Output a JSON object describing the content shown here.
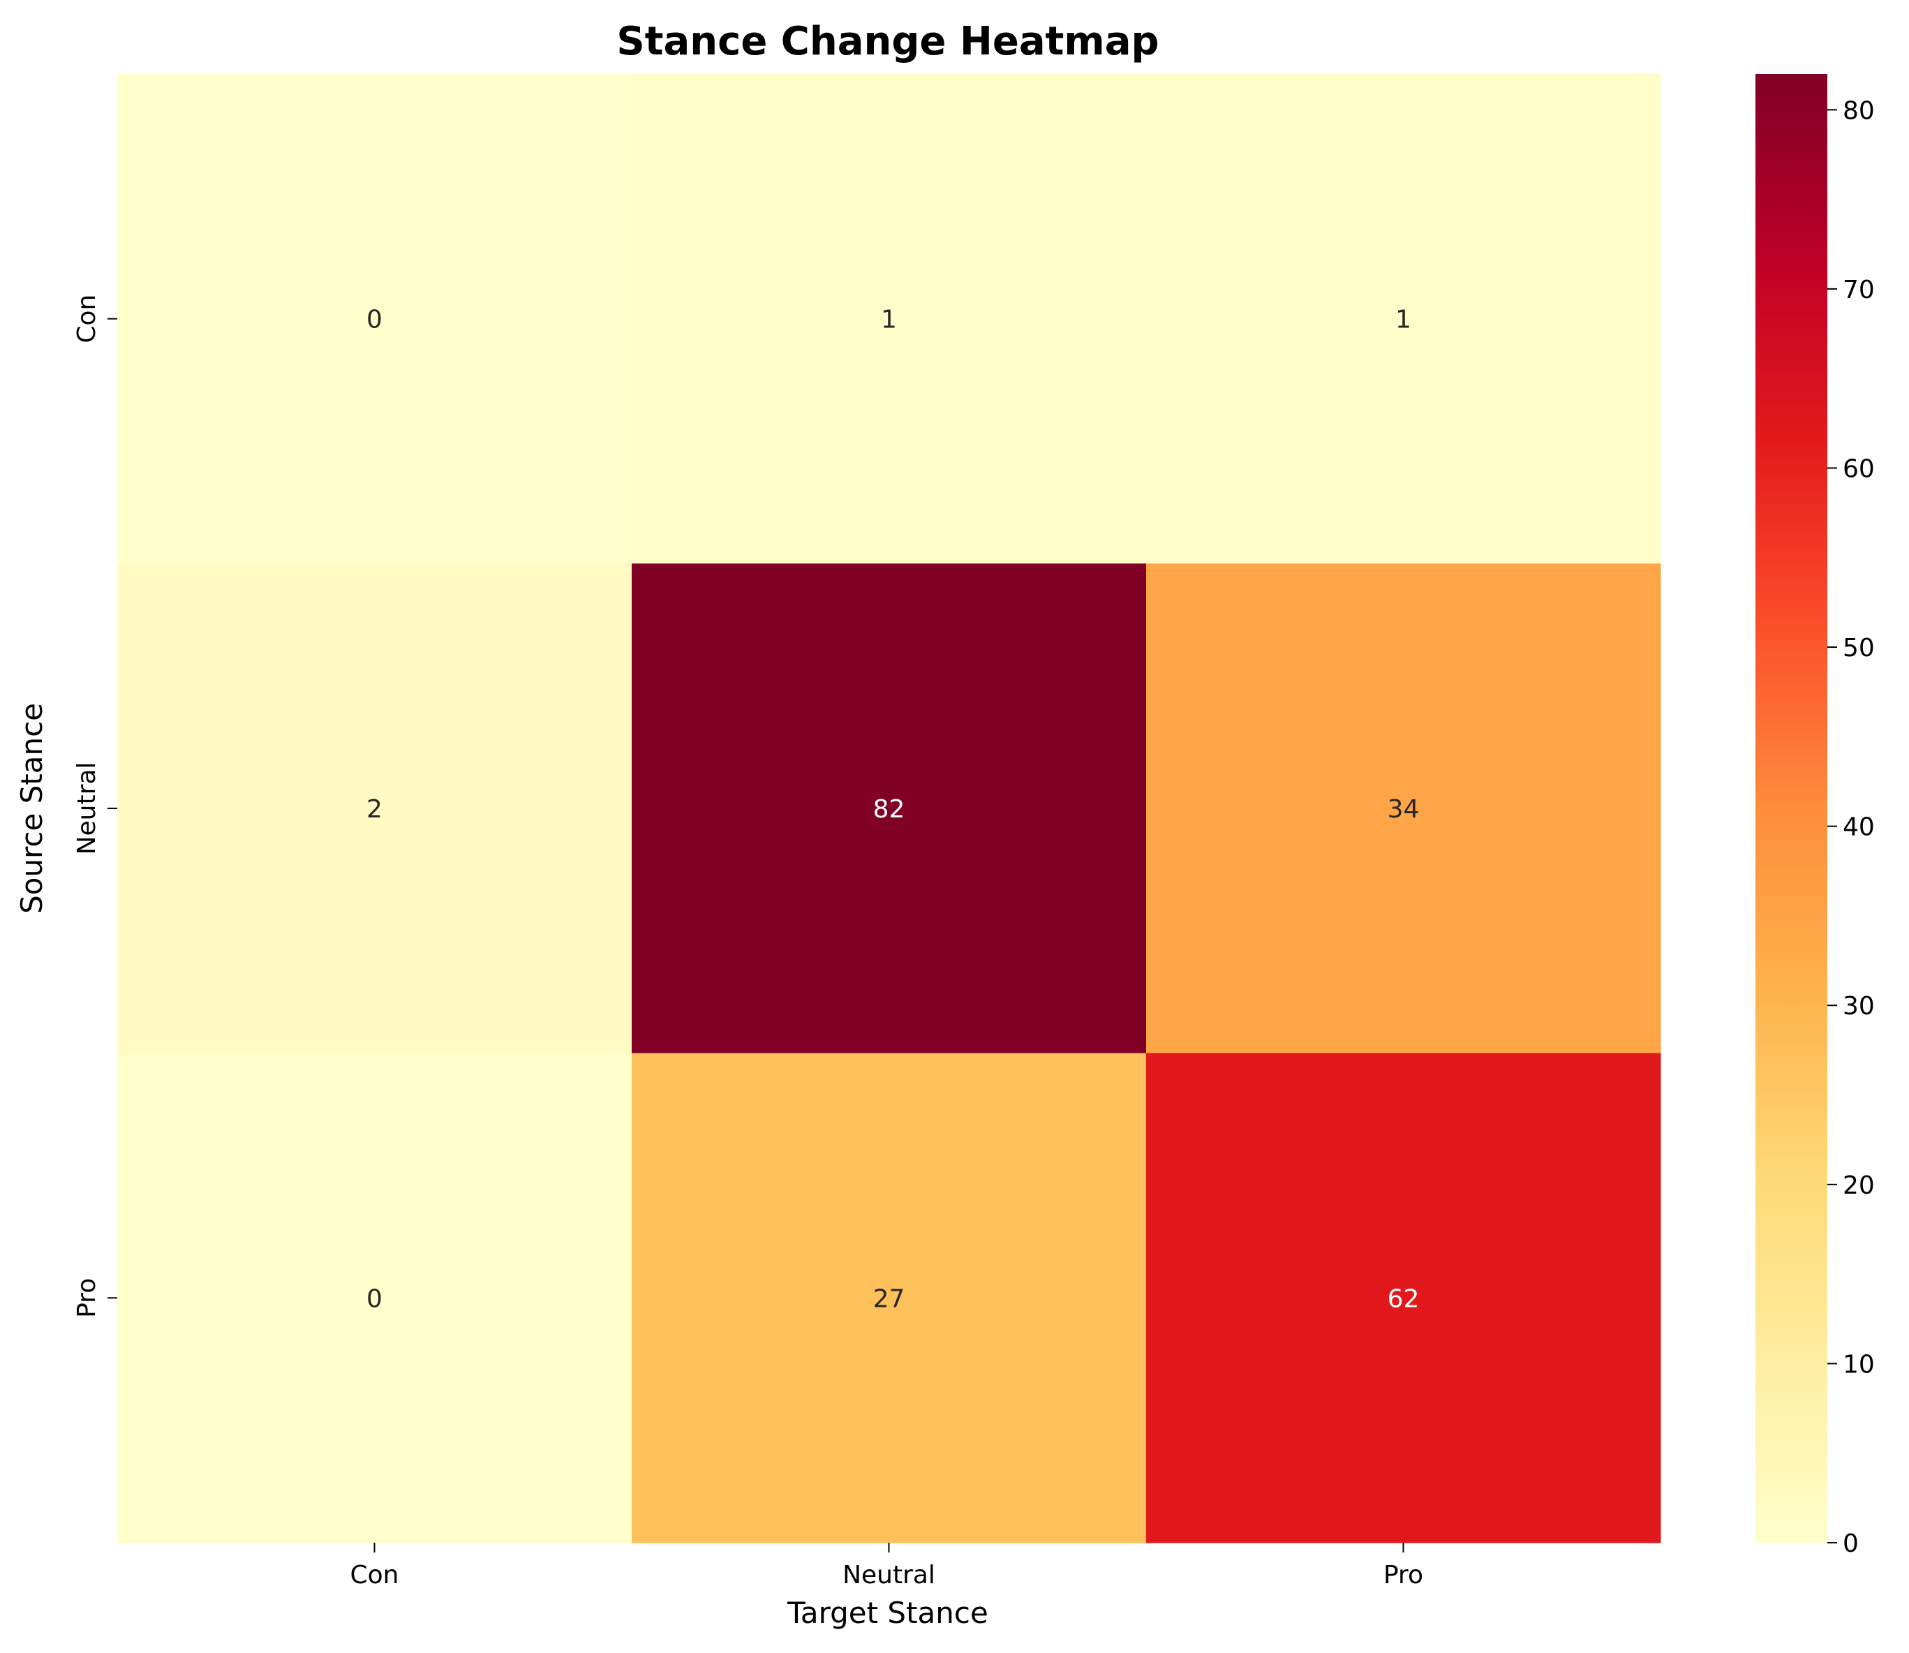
{
  "chart_data": {
    "type": "heatmap",
    "title": "Stance Change Heatmap",
    "xlabel": "Target Stance",
    "ylabel": "Source Stance",
    "x_categories": [
      "Con",
      "Neutral",
      "Pro"
    ],
    "y_categories": [
      "Con",
      "Neutral",
      "Pro"
    ],
    "values": [
      [
        0,
        1,
        1
      ],
      [
        2,
        82,
        34
      ],
      [
        0,
        27,
        62
      ]
    ],
    "annotations": true,
    "colormap": "YlOrRd",
    "colorbar": {
      "range": [
        0,
        82
      ],
      "ticks": [
        0,
        10,
        20,
        30,
        40,
        50,
        60,
        70,
        80
      ],
      "stops": [
        "#ffffcc",
        "#ffeda0",
        "#fed976",
        "#feb24c",
        "#fd8d3c",
        "#fc4e2a",
        "#e31a1c",
        "#bd0026",
        "#800026"
      ]
    },
    "annotation_colors": {
      "dark": "#262626",
      "light": "#ffffff"
    }
  }
}
